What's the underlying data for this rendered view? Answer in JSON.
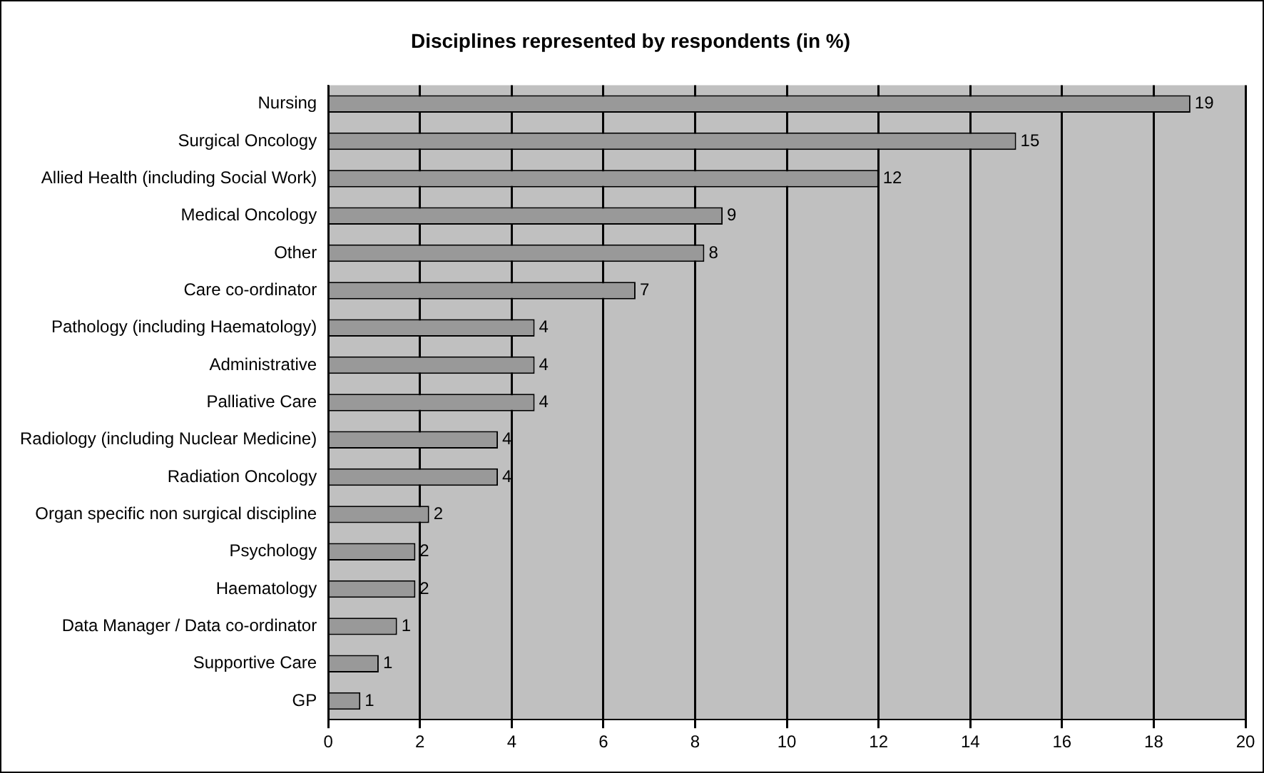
{
  "chart_data": {
    "type": "bar",
    "orientation": "horizontal",
    "title": "Disciplines represented by respondents (in %)",
    "categories": [
      "Nursing",
      "Surgical Oncology",
      "Allied Health (including Social Work)",
      "Medical Oncology",
      "Other",
      "Care co-ordinator",
      "Pathology (including Haematology)",
      "Administrative",
      "Palliative Care",
      "Radiology (including Nuclear Medicine)",
      "Radiation Oncology",
      "Organ specific non surgical discipline",
      "Psychology",
      "Haematology",
      "Data Manager / Data co-ordinator",
      "Supportive Care",
      "GP"
    ],
    "values": [
      18.8,
      15.0,
      12.0,
      8.6,
      8.2,
      6.7,
      4.5,
      4.5,
      4.5,
      3.7,
      3.7,
      2.2,
      1.9,
      1.9,
      1.5,
      1.1,
      0.7
    ],
    "value_labels": [
      "19",
      "15",
      "12",
      "9",
      "8",
      "7",
      "4",
      "4",
      "4",
      "4",
      "4",
      "2",
      "2",
      "2",
      "1",
      "1",
      "1"
    ],
    "color": "#999999",
    "xlim": [
      0,
      20
    ],
    "xticks": [
      0,
      2,
      4,
      6,
      8,
      10,
      12,
      14,
      16,
      18,
      20
    ],
    "grid": "x",
    "legend": false
  }
}
